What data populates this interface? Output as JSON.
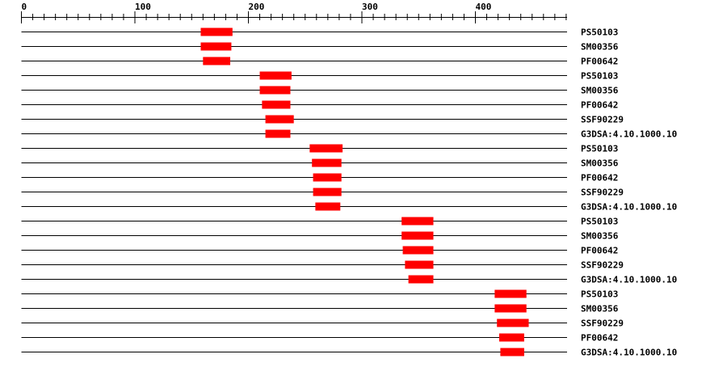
{
  "axis": {
    "min": 0,
    "max": 481,
    "major_ticks": [
      0,
      100,
      200,
      300,
      400
    ],
    "minor_step": 10
  },
  "colors": {
    "domain": "#ff0000",
    "line": "#000000"
  },
  "tracks": [
    {
      "label": "PS50103",
      "start": 158,
      "end": 186
    },
    {
      "label": "SM00356",
      "start": 158,
      "end": 185
    },
    {
      "label": "PF00642",
      "start": 160,
      "end": 184
    },
    {
      "label": "PS50103",
      "start": 210,
      "end": 238
    },
    {
      "label": "SM00356",
      "start": 210,
      "end": 237
    },
    {
      "label": "PF00642",
      "start": 212,
      "end": 237
    },
    {
      "label": "SSF90229",
      "start": 215,
      "end": 240
    },
    {
      "label": "G3DSA:4.10.1000.10",
      "start": 215,
      "end": 237
    },
    {
      "label": "PS50103",
      "start": 254,
      "end": 283
    },
    {
      "label": "SM00356",
      "start": 256,
      "end": 282
    },
    {
      "label": "PF00642",
      "start": 257,
      "end": 282
    },
    {
      "label": "SSF90229",
      "start": 257,
      "end": 282
    },
    {
      "label": "G3DSA:4.10.1000.10",
      "start": 259,
      "end": 281
    },
    {
      "label": "PS50103",
      "start": 335,
      "end": 363
    },
    {
      "label": "SM00356",
      "start": 335,
      "end": 363
    },
    {
      "label": "PF00642",
      "start": 336,
      "end": 363
    },
    {
      "label": "SSF90229",
      "start": 338,
      "end": 363
    },
    {
      "label": "G3DSA:4.10.1000.10",
      "start": 341,
      "end": 363
    },
    {
      "label": "PS50103",
      "start": 417,
      "end": 445
    },
    {
      "label": "SM00356",
      "start": 417,
      "end": 445
    },
    {
      "label": "SSF90229",
      "start": 419,
      "end": 447
    },
    {
      "label": "PF00642",
      "start": 421,
      "end": 443
    },
    {
      "label": "G3DSA:4.10.1000.10",
      "start": 422,
      "end": 443
    }
  ]
}
